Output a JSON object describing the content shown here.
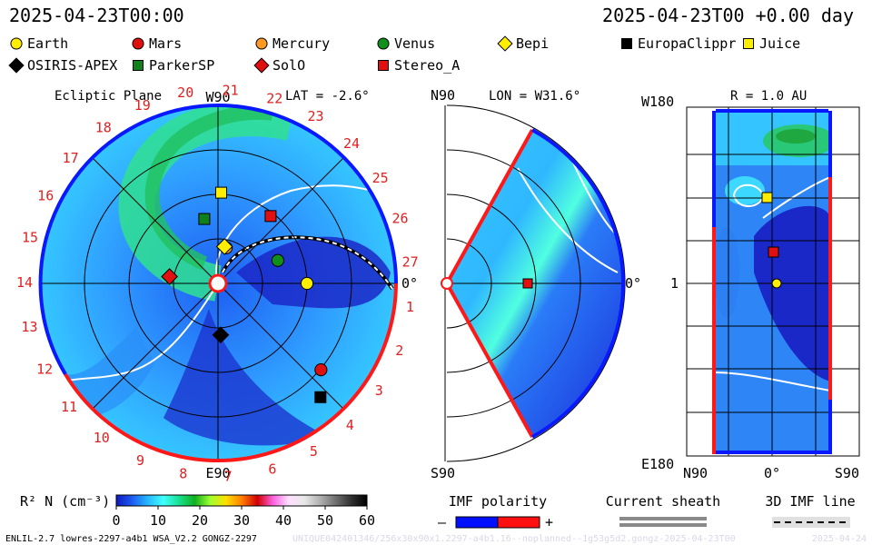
{
  "header": {
    "timestamp_left": "2025-04-23T00:00",
    "timestamp_right": "2025-04-23T00 +0.00 day"
  },
  "legend": [
    {
      "name": "Earth",
      "shape": "circle",
      "color": "#ffee00"
    },
    {
      "name": "Mars",
      "shape": "circle",
      "color": "#e01010"
    },
    {
      "name": "Mercury",
      "shape": "circle",
      "color": "#ff9a20"
    },
    {
      "name": "Venus",
      "shape": "circle",
      "color": "#10901a"
    },
    {
      "name": "Bepi",
      "shape": "diamond",
      "color": "#ffee00"
    },
    {
      "name": "EuropaClippr",
      "shape": "square",
      "color": "#000000"
    },
    {
      "name": "Juice",
      "shape": "square",
      "color": "#ffee00"
    },
    {
      "name": "OSIRIS-APEX",
      "shape": "diamond",
      "color": "#000000"
    },
    {
      "name": "ParkerSP",
      "shape": "square",
      "color": "#10801a"
    },
    {
      "name": "SolO",
      "shape": "diamond",
      "color": "#e01010"
    },
    {
      "name": "Stereo_A",
      "shape": "square",
      "color": "#e01010"
    }
  ],
  "panels": {
    "ecliptic": {
      "title": "Ecliptic Plane",
      "lat": "LAT = -2.6°",
      "top_label": "W90",
      "bottom_label": "E90",
      "right_label": "0°",
      "carrington_labels": [
        "1",
        "2",
        "3",
        "4",
        "5",
        "6",
        "7",
        "8",
        "9",
        "10",
        "11",
        "12",
        "13",
        "14",
        "15",
        "16",
        "17",
        "18",
        "19",
        "20",
        "21",
        "22",
        "23",
        "24",
        "25",
        "26",
        "27"
      ]
    },
    "meridional": {
      "lon": "LON = W31.6°",
      "top_label": "N90",
      "bottom_label": "S90",
      "right_label": "0°"
    },
    "radial": {
      "r": "R = 1.0 AU",
      "top_label": "W180",
      "mid_label": "1",
      "bottom_label": "E180",
      "x_labels": [
        "N90",
        "0°",
        "S90"
      ]
    }
  },
  "colorbar": {
    "label": "R² N (cm⁻³)",
    "ticks": [
      "0",
      "10",
      "20",
      "30",
      "40",
      "50",
      "60"
    ],
    "colors": [
      "#1018c0",
      "#1c5cf0",
      "#25b6ff",
      "#40ffff",
      "#18e090",
      "#10b020",
      "#a0ff30",
      "#ffe000",
      "#ff8000",
      "#d00000",
      "#ff60e0",
      "#ffe0ff",
      "#e8e8e8",
      "#b0b0b0",
      "#707070",
      "#303030",
      "#000000"
    ]
  },
  "imf_polarity": {
    "title": "IMF polarity",
    "minus": "–",
    "plus": "+",
    "neg_color": "#0010ff",
    "pos_color": "#ff1010"
  },
  "current_sheath": {
    "title": "Current sheath"
  },
  "imf_line": {
    "title": "3D IMF line"
  },
  "footer": {
    "model_info": "ENLIL-2.7 lowres-2297-a4b1 WSA_V2.2 GONGZ-2297",
    "watermark": "UNIQUE042401346/256x30x90x1.2297-a4b1.16--noplanned--1g53g5d2.gongz-2025-04-23T00",
    "date_tag": "2025-04-24"
  },
  "chart_data": [
    {
      "type": "scatter",
      "title": "Ecliptic Plane",
      "subtitle": "LAT = -2.6°",
      "points": [
        {
          "name": "Earth",
          "r_au": 1.0,
          "lon_deg": 0
        },
        {
          "name": "Mars",
          "r_au": 1.51,
          "lon_deg": -40
        },
        {
          "name": "Mercury",
          "r_au": 0.41,
          "lon_deg": 77
        },
        {
          "name": "Venus",
          "r_au": 0.72,
          "lon_deg": 21
        },
        {
          "name": "Bepi",
          "r_au": 0.42,
          "lon_deg": 80
        },
        {
          "name": "EuropaClippr",
          "r_au": 1.72,
          "lon_deg": -48
        },
        {
          "name": "Juice",
          "r_au": 1.02,
          "lon_deg": 88
        },
        {
          "name": "OSIRIS-APEX",
          "r_au": 0.58,
          "lon_deg": -87
        },
        {
          "name": "ParkerSP",
          "r_au": 0.74,
          "lon_deg": 102
        },
        {
          "name": "SolO",
          "r_au": 0.55,
          "lon_deg": 172
        },
        {
          "name": "Stereo_A",
          "r_au": 0.96,
          "lon_deg": 52
        }
      ]
    },
    {
      "type": "scatter",
      "title": "Meridional plane",
      "subtitle": "LON = W31.6°",
      "points": [
        {
          "name": "Stereo_A",
          "r_au": 0.96,
          "lat_deg": 0
        }
      ]
    },
    {
      "type": "scatter",
      "title": "R = 1.0 AU",
      "points": [
        {
          "name": "Juice",
          "lat_deg": 5,
          "lon_deg": 100
        },
        {
          "name": "Stereo_A",
          "lat_deg": 3,
          "lon_deg": 37
        },
        {
          "name": "Earth",
          "lat_deg": -3,
          "lon_deg": 0
        }
      ]
    }
  ]
}
